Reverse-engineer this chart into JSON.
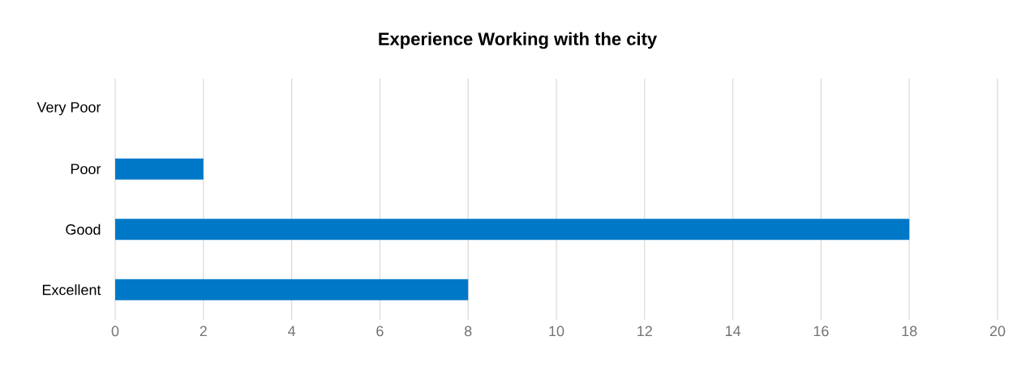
{
  "chart_data": {
    "type": "bar",
    "orientation": "horizontal",
    "title": "Experience Working with the city",
    "categories": [
      "Very Poor",
      "Poor",
      "Good",
      "Excellent"
    ],
    "values": [
      0,
      2,
      18,
      8
    ],
    "color": "#0078c8",
    "xlim": [
      0,
      20
    ],
    "xticks": [
      0,
      2,
      4,
      6,
      8,
      10,
      12,
      14,
      16,
      18,
      20
    ],
    "grid": "x"
  }
}
